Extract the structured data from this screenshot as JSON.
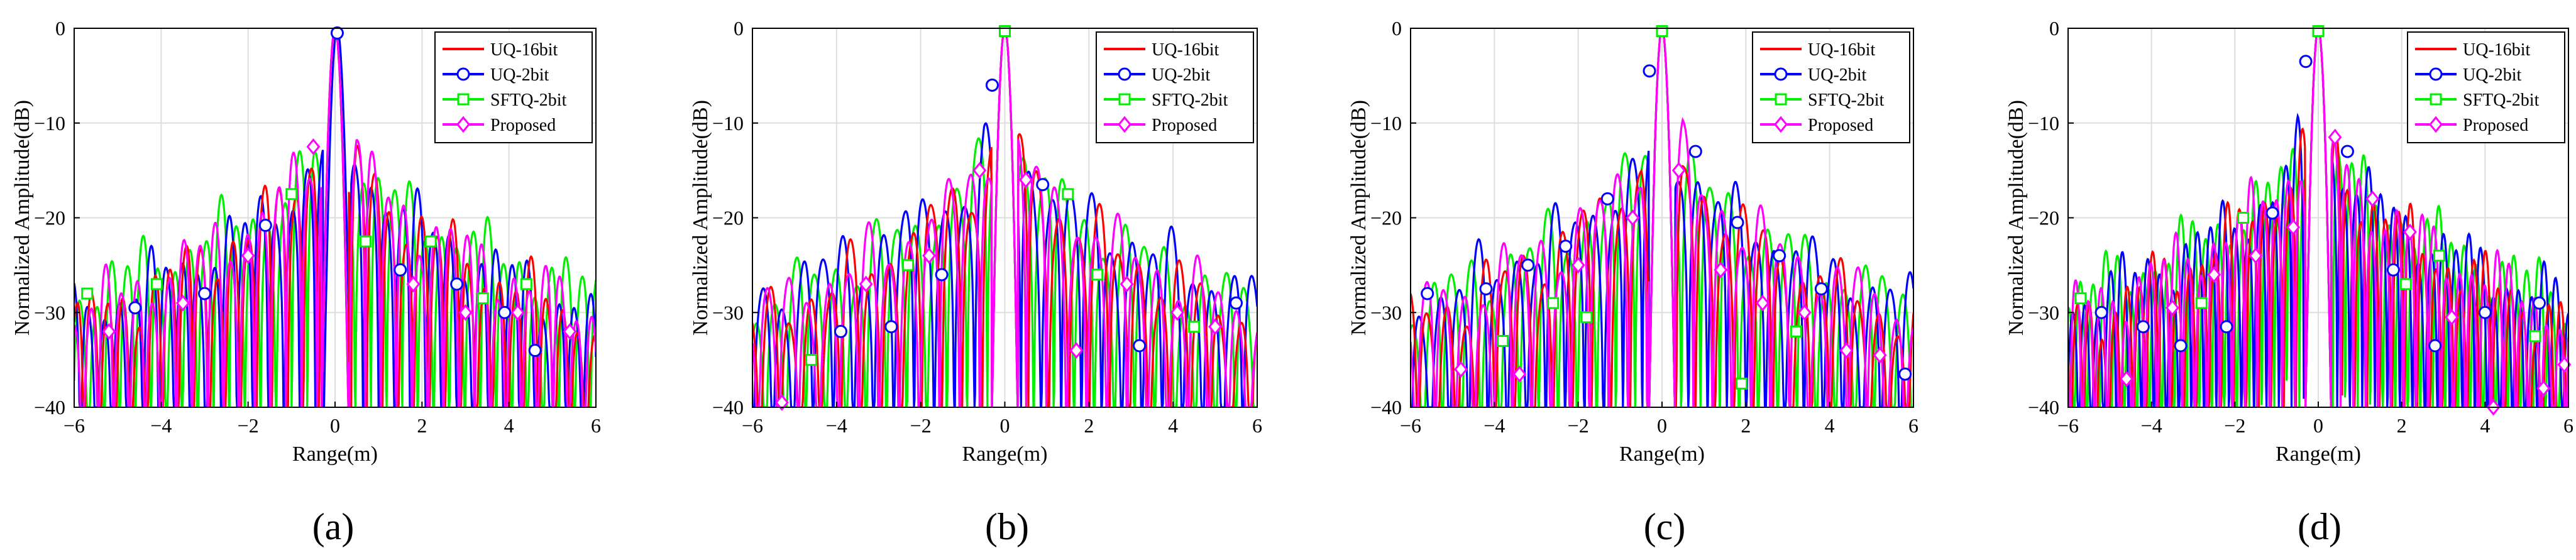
{
  "figure": {
    "panel_labels": [
      "(a)",
      "(b)",
      "(c)",
      "(d)"
    ]
  },
  "legend_entries": [
    {
      "name": "UQ-16bit",
      "color": "#ff0000",
      "marker": "none"
    },
    {
      "name": "UQ-2bit",
      "color": "#0000ff",
      "marker": "circle"
    },
    {
      "name": "SFTQ-2bit",
      "color": "#00ee00",
      "marker": "square"
    },
    {
      "name": "Proposed",
      "color": "#ff00ff",
      "marker": "diamond"
    }
  ],
  "chart_data": [
    {
      "type": "line",
      "panel": "(a)",
      "title": "",
      "xlabel": "Range(m)",
      "ylabel": "Normalized Amplitude(dB)",
      "xlim": [
        -6,
        6
      ],
      "ylim": [
        -40,
        0
      ],
      "xticks": [
        -6,
        -4,
        -2,
        0,
        2,
        4,
        6
      ],
      "yticks": [
        0,
        -10,
        -20,
        -30,
        -40
      ],
      "legend_position": "top-right",
      "grid": true,
      "series": [
        {
          "name": "UQ-16bit",
          "mainlobe_center": 0.0,
          "lobe_spacing": 0.36,
          "peak_sidelobe_db": -12.8,
          "far_sidelobe_db": -31
        },
        {
          "name": "UQ-2bit",
          "mainlobe_center": 0.05,
          "lobe_spacing": 0.36,
          "peak_sidelobe_db": -13,
          "far_sidelobe_db": -30,
          "markers": [
            [
              0.05,
              -0.5
            ],
            [
              -1.6,
              -20.8
            ],
            [
              -3.0,
              -28
            ],
            [
              -4.6,
              -29.5
            ],
            [
              1.5,
              -25.5
            ],
            [
              2.8,
              -27
            ],
            [
              4.6,
              -34
            ],
            [
              3.9,
              -30
            ]
          ]
        },
        {
          "name": "SFTQ-2bit",
          "mainlobe_center": 0.0,
          "lobe_spacing": 0.36,
          "peak_sidelobe_db": -13.5,
          "far_sidelobe_db": -27.5,
          "markers": [
            [
              -5.7,
              -28
            ],
            [
              -4.1,
              -27
            ],
            [
              -1.0,
              -17.5
            ],
            [
              0.7,
              -22.5
            ],
            [
              2.2,
              -22.5
            ],
            [
              3.4,
              -28.5
            ],
            [
              4.4,
              -27
            ]
          ]
        },
        {
          "name": "Proposed",
          "mainlobe_center": 0.0,
          "lobe_spacing": 0.36,
          "peak_sidelobe_db": -12.5,
          "far_sidelobe_db": -30,
          "markers": [
            [
              -0.5,
              -12.5
            ],
            [
              -2.0,
              -24
            ],
            [
              -3.5,
              -29
            ],
            [
              -5.2,
              -32
            ],
            [
              1.8,
              -27
            ],
            [
              3.0,
              -30
            ],
            [
              4.2,
              -30
            ],
            [
              5.4,
              -32
            ]
          ]
        }
      ]
    },
    {
      "type": "line",
      "panel": "(b)",
      "title": "",
      "xlabel": "Range(m)",
      "ylabel": "Normalized Amplitude(dB)",
      "xlim": [
        -6,
        6
      ],
      "ylim": [
        -40,
        0
      ],
      "xticks": [
        -6,
        -4,
        -2,
        0,
        2,
        4,
        6
      ],
      "yticks": [
        0,
        -10,
        -20,
        -30,
        -40
      ],
      "legend_position": "top-right",
      "grid": true,
      "series": [
        {
          "name": "UQ-16bit",
          "mainlobe_center": 0.0,
          "lobe_spacing": 0.48,
          "peak_sidelobe_db": -13,
          "far_sidelobe_db": -31
        },
        {
          "name": "UQ-2bit",
          "mainlobe_center": 0.0,
          "lobe_spacing": 0.48,
          "peak_sidelobe_db": -13,
          "far_sidelobe_db": -28,
          "markers": [
            [
              -0.3,
              -6
            ],
            [
              -1.5,
              -26
            ],
            [
              -2.7,
              -31.5
            ],
            [
              -3.9,
              -32
            ],
            [
              0.9,
              -16.5
            ],
            [
              3.2,
              -33.5
            ],
            [
              5.5,
              -29
            ]
          ]
        },
        {
          "name": "SFTQ-2bit",
          "mainlobe_center": 0.0,
          "lobe_spacing": 0.48,
          "peak_sidelobe_db": -13,
          "far_sidelobe_db": -29,
          "markers": [
            [
              0.0,
              -0.3
            ],
            [
              -2.3,
              -25
            ],
            [
              -4.6,
              -35
            ],
            [
              1.5,
              -17.5
            ],
            [
              2.2,
              -26
            ],
            [
              4.5,
              -31.5
            ]
          ]
        },
        {
          "name": "Proposed",
          "mainlobe_center": 0.0,
          "lobe_spacing": 0.48,
          "peak_sidelobe_db": -13,
          "far_sidelobe_db": -30,
          "markers": [
            [
              -0.6,
              -15
            ],
            [
              -1.8,
              -24
            ],
            [
              -3.3,
              -27
            ],
            [
              -5.3,
              -39.5
            ],
            [
              0.5,
              -16
            ],
            [
              1.7,
              -34
            ],
            [
              2.9,
              -27
            ],
            [
              4.1,
              -30
            ],
            [
              5.0,
              -31.5
            ]
          ]
        }
      ]
    },
    {
      "type": "line",
      "panel": "(c)",
      "title": "",
      "xlabel": "Range(m)",
      "ylabel": "Normalized Amplitude(dB)",
      "xlim": [
        -6,
        6
      ],
      "ylim": [
        -40,
        0
      ],
      "xticks": [
        -6,
        -4,
        -2,
        0,
        2,
        4,
        6
      ],
      "yticks": [
        0,
        -10,
        -20,
        -30,
        -40
      ],
      "legend_position": "top-right",
      "grid": true,
      "series": [
        {
          "name": "UQ-16bit",
          "mainlobe_center": 0.0,
          "lobe_spacing": 0.46,
          "peak_sidelobe_db": -13,
          "far_sidelobe_db": -31
        },
        {
          "name": "UQ-2bit",
          "mainlobe_center": 0.0,
          "lobe_spacing": 0.46,
          "peak_sidelobe_db": -13,
          "far_sidelobe_db": -29,
          "markers": [
            [
              -0.3,
              -4.5
            ],
            [
              -1.3,
              -18
            ],
            [
              -2.3,
              -23
            ],
            [
              -3.2,
              -25
            ],
            [
              -4.2,
              -27.5
            ],
            [
              -5.6,
              -28
            ],
            [
              0.8,
              -13
            ],
            [
              1.8,
              -20.5
            ],
            [
              2.8,
              -24
            ],
            [
              3.8,
              -27.5
            ],
            [
              5.8,
              -36.5
            ]
          ]
        },
        {
          "name": "SFTQ-2bit",
          "mainlobe_center": 0.0,
          "lobe_spacing": 0.46,
          "peak_sidelobe_db": -13,
          "far_sidelobe_db": -29,
          "markers": [
            [
              0.0,
              -0.3
            ],
            [
              -1.8,
              -30.5
            ],
            [
              -2.6,
              -29
            ],
            [
              -3.8,
              -33
            ],
            [
              1.9,
              -37.5
            ],
            [
              3.2,
              -32
            ]
          ]
        },
        {
          "name": "Proposed",
          "mainlobe_center": 0.0,
          "lobe_spacing": 0.46,
          "peak_sidelobe_db": -13,
          "far_sidelobe_db": -30,
          "markers": [
            [
              -0.7,
              -20
            ],
            [
              -2.0,
              -25
            ],
            [
              -3.4,
              -36.5
            ],
            [
              -4.8,
              -36
            ],
            [
              0.4,
              -15
            ],
            [
              1.4,
              -25.5
            ],
            [
              2.4,
              -29
            ],
            [
              3.4,
              -30
            ],
            [
              4.4,
              -34
            ],
            [
              5.2,
              -34.5
            ]
          ]
        }
      ]
    },
    {
      "type": "line",
      "panel": "(d)",
      "title": "",
      "xlabel": "Range(m)",
      "ylabel": "Normalized Amplitude(dB)",
      "xlim": [
        -6,
        6
      ],
      "ylim": [
        -40,
        0
      ],
      "xticks": [
        -6,
        -4,
        -2,
        0,
        2,
        4,
        6
      ],
      "yticks": [
        0,
        -10,
        -20,
        -30,
        -40
      ],
      "legend_position": "top-right",
      "grid": true,
      "series": [
        {
          "name": "UQ-16bit",
          "mainlobe_center": 0.0,
          "lobe_spacing": 0.3,
          "peak_sidelobe_db": -13,
          "far_sidelobe_db": -31
        },
        {
          "name": "UQ-2bit",
          "mainlobe_center": 0.0,
          "lobe_spacing": 0.3,
          "peak_sidelobe_db": -13,
          "far_sidelobe_db": -29,
          "markers": [
            [
              -0.3,
              -3.5
            ],
            [
              -1.1,
              -19.5
            ],
            [
              -2.2,
              -31.5
            ],
            [
              -3.3,
              -33.5
            ],
            [
              -4.2,
              -31.5
            ],
            [
              -5.2,
              -30
            ],
            [
              0.7,
              -13
            ],
            [
              1.8,
              -25.5
            ],
            [
              2.8,
              -33.5
            ],
            [
              4.0,
              -30
            ],
            [
              5.3,
              -29
            ]
          ]
        },
        {
          "name": "SFTQ-2bit",
          "mainlobe_center": 0.0,
          "lobe_spacing": 0.3,
          "peak_sidelobe_db": -13,
          "far_sidelobe_db": -28,
          "markers": [
            [
              0.0,
              -0.3
            ],
            [
              -1.8,
              -20
            ],
            [
              -2.8,
              -29
            ],
            [
              -5.7,
              -28.5
            ],
            [
              2.1,
              -27
            ],
            [
              2.9,
              -24
            ],
            [
              5.2,
              -32.5
            ]
          ]
        },
        {
          "name": "Proposed",
          "mainlobe_center": 0.0,
          "lobe_spacing": 0.3,
          "peak_sidelobe_db": -13,
          "far_sidelobe_db": -30,
          "markers": [
            [
              0.4,
              -11.5
            ],
            [
              -0.6,
              -21
            ],
            [
              -1.5,
              -24
            ],
            [
              -2.5,
              -26
            ],
            [
              -3.5,
              -29.5
            ],
            [
              -4.6,
              -37
            ],
            [
              1.3,
              -18
            ],
            [
              2.2,
              -21.5
            ],
            [
              3.2,
              -30.5
            ],
            [
              4.2,
              -40
            ],
            [
              5.4,
              -38
            ],
            [
              5.9,
              -35.5
            ]
          ]
        }
      ]
    }
  ]
}
